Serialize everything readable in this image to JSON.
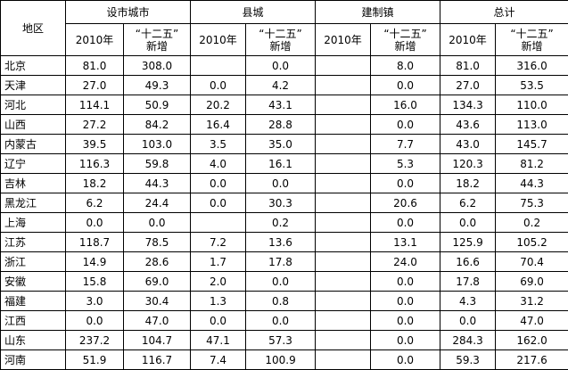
{
  "table": {
    "header": {
      "region": "地区",
      "groups": [
        "设市城市",
        "县城",
        "建制镇",
        "总计"
      ],
      "sub": [
        "2010年",
        "“十二五”",
        "新增"
      ]
    },
    "rows": [
      [
        "北京",
        "81.0",
        "308.0",
        null,
        "0.0",
        null,
        "8.0",
        "81.0",
        "316.0"
      ],
      [
        "天津",
        "27.0",
        "49.3",
        "0.0",
        "4.2",
        null,
        "0.0",
        "27.0",
        "53.5"
      ],
      [
        "河北",
        "114.1",
        "50.9",
        "20.2",
        "43.1",
        null,
        "16.0",
        "134.3",
        "110.0"
      ],
      [
        "山西",
        "27.2",
        "84.2",
        "16.4",
        "28.8",
        null,
        "0.0",
        "43.6",
        "113.0"
      ],
      [
        "内蒙古",
        "39.5",
        "103.0",
        "3.5",
        "35.0",
        null,
        "7.7",
        "43.0",
        "145.7"
      ],
      [
        "辽宁",
        "116.3",
        "59.8",
        "4.0",
        "16.1",
        null,
        "5.3",
        "120.3",
        "81.2"
      ],
      [
        "吉林",
        "18.2",
        "44.3",
        "0.0",
        "0.0",
        null,
        "0.0",
        "18.2",
        "44.3"
      ],
      [
        "黑龙江",
        "6.2",
        "24.4",
        "0.0",
        "30.3",
        null,
        "20.6",
        "6.2",
        "75.3"
      ],
      [
        "上海",
        "0.0",
        "0.0",
        null,
        "0.2",
        null,
        "0.0",
        "0.0",
        "0.2"
      ],
      [
        "江苏",
        "118.7",
        "78.5",
        "7.2",
        "13.6",
        null,
        "13.1",
        "125.9",
        "105.2"
      ],
      [
        "浙江",
        "14.9",
        "28.6",
        "1.7",
        "17.8",
        null,
        "24.0",
        "16.6",
        "70.4"
      ],
      [
        "安徽",
        "15.8",
        "69.0",
        "2.0",
        "0.0",
        null,
        "0.0",
        "17.8",
        "69.0"
      ],
      [
        "福建",
        "3.0",
        "30.4",
        "1.3",
        "0.8",
        null,
        "0.0",
        "4.3",
        "31.2"
      ],
      [
        "江西",
        "0.0",
        "47.0",
        "0.0",
        "0.0",
        null,
        "0.0",
        "0.0",
        "47.0"
      ],
      [
        "山东",
        "237.2",
        "104.7",
        "47.1",
        "57.3",
        null,
        "0.0",
        "284.3",
        "162.0"
      ],
      [
        "河南",
        "51.9",
        "116.7",
        "7.4",
        "100.9",
        null,
        "0.0",
        "59.3",
        "217.6"
      ]
    ]
  }
}
